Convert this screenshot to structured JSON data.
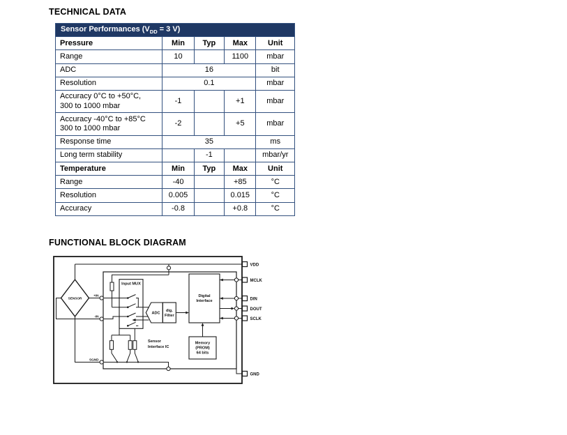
{
  "page": {
    "heading_technical": "TECHNICAL DATA",
    "heading_diagram": "FUNCTIONAL BLOCK DIAGRAM"
  },
  "colors": {
    "header_bg": "#1F3864",
    "table_border": "#32507E",
    "text": "#000000"
  },
  "table": {
    "title_pre": "Sensor Performances (V",
    "title_sub": "DD",
    "title_post": " = 3 V)",
    "rows": [
      {
        "type": "header",
        "label": "Pressure",
        "min": "Min",
        "typ": "Typ",
        "max": "Max",
        "unit": "Unit"
      },
      {
        "type": "row",
        "label": "Range",
        "min": "10",
        "typ": "",
        "max": "1100",
        "unit": "mbar"
      },
      {
        "type": "span",
        "label": "ADC",
        "value": "16",
        "unit": "bit"
      },
      {
        "type": "span",
        "label": "Resolution",
        "value": "0.1",
        "unit": "mbar"
      },
      {
        "type": "row",
        "label": "Accuracy 0°C to +50°C,",
        "label2": "300 to 1000 mbar",
        "min": "-1",
        "typ": "",
        "max": "+1",
        "unit": "mbar"
      },
      {
        "type": "row",
        "label": "Accuracy -40°C to +85°C",
        "label2": "300 to 1000 mbar",
        "min": "-2",
        "typ": "",
        "max": "+5",
        "unit": "mbar"
      },
      {
        "type": "span",
        "label": "Response time",
        "value": "35",
        "unit": "ms"
      },
      {
        "type": "row",
        "label": "Long term stability",
        "min": "",
        "typ": "-1",
        "max": "",
        "unit": "mbar/yr"
      },
      {
        "type": "header",
        "label": "Temperature",
        "min": "Min",
        "typ": "Typ",
        "max": "Max",
        "unit": "Unit"
      },
      {
        "type": "row",
        "label": "Range",
        "min": "-40",
        "typ": "",
        "max": "+85",
        "unit": "°C"
      },
      {
        "type": "row",
        "label": "Resolution",
        "min": "0.005",
        "typ": "",
        "max": "0.015",
        "unit": "°C"
      },
      {
        "type": "row",
        "label": "Accuracy",
        "min": "-0.8",
        "typ": "",
        "max": "+0.8",
        "unit": "°C"
      }
    ]
  },
  "diagram": {
    "blocks": {
      "sensor": "SENSOR",
      "input_mux": "Input MUX",
      "adc": "ADC",
      "filter_line1": "dig.",
      "filter_line2": "Filter",
      "digital_line1": "Digital",
      "digital_line2": "Interface",
      "memory_line1": "Memory",
      "memory_line2": "(PROM)",
      "memory_line3": "64 bits",
      "ic_line1": "Sensor",
      "ic_line2": "Interface IC"
    },
    "nets": {
      "plus_in": "+IN",
      "minus_in": "-IN",
      "sgnd": "SGND"
    },
    "pins": [
      {
        "label": "VDD"
      },
      {
        "label": "MCLK"
      },
      {
        "label": "DIN"
      },
      {
        "label": "DOUT"
      },
      {
        "label": "SCLK"
      },
      {
        "label": "GND"
      }
    ]
  }
}
